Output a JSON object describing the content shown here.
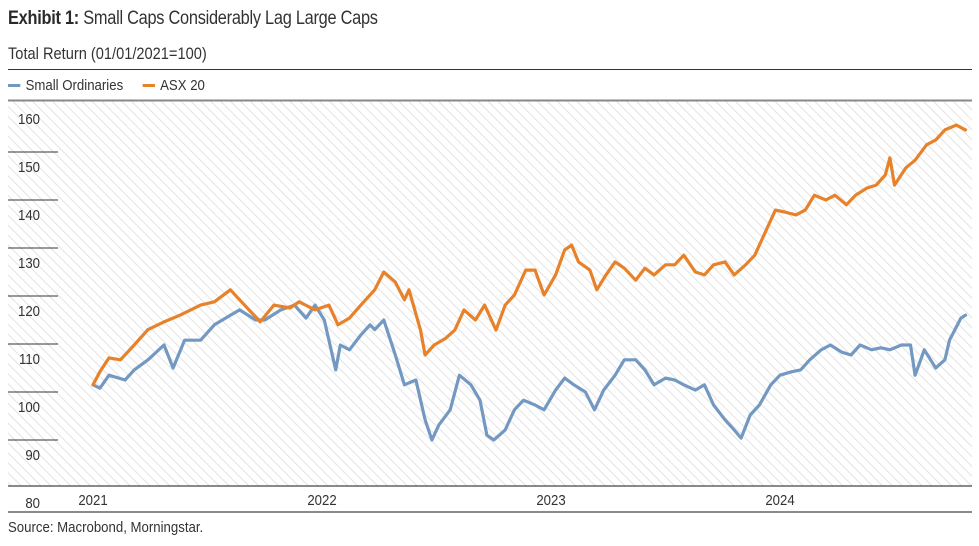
{
  "header": {
    "exhibit_label": "Exhibit 1:",
    "title": "Small Caps Considerably Lag Large Caps",
    "subtitle": "Total Return (01/01/2021=100)"
  },
  "footer": {
    "source": "Source: Macrobond, Morningstar."
  },
  "chart_data": {
    "type": "line",
    "title": "Exhibit 1: Small Caps Considerably Lag Large Caps",
    "subtitle": "Total Return (01/01/2021=100)",
    "xlabel": "",
    "ylabel": "",
    "ylim": [
      80,
      160
    ],
    "yticks": [
      80,
      90,
      100,
      110,
      120,
      130,
      140,
      150,
      160
    ],
    "xlim": [
      2021.0,
      2024.83
    ],
    "xticks": [
      {
        "value": 2021,
        "label": "2021"
      },
      {
        "value": 2022,
        "label": "2022"
      },
      {
        "value": 2023,
        "label": "2023"
      },
      {
        "value": 2024,
        "label": "2024"
      }
    ],
    "grid": "horizontal",
    "legend_position": "top-left",
    "series": [
      {
        "name": "Small Ordinaries",
        "color": "#7399c2",
        "points": [
          [
            2021.0,
            101.5
          ],
          [
            2021.03,
            100.8
          ],
          [
            2021.07,
            103.5
          ],
          [
            2021.14,
            102.5
          ],
          [
            2021.18,
            104.6
          ],
          [
            2021.24,
            106.7
          ],
          [
            2021.31,
            109.8
          ],
          [
            2021.35,
            105.0
          ],
          [
            2021.4,
            110.8
          ],
          [
            2021.47,
            110.8
          ],
          [
            2021.53,
            114.0
          ],
          [
            2021.6,
            116.0
          ],
          [
            2021.64,
            117.1
          ],
          [
            2021.71,
            115.0
          ],
          [
            2021.75,
            115.0
          ],
          [
            2021.82,
            117.1
          ],
          [
            2021.88,
            118.1
          ],
          [
            2021.93,
            115.4
          ],
          [
            2021.97,
            118.1
          ],
          [
            2022.01,
            115.0
          ],
          [
            2022.03,
            110.8
          ],
          [
            2022.06,
            104.6
          ],
          [
            2022.08,
            109.8
          ],
          [
            2022.12,
            108.8
          ],
          [
            2022.17,
            111.9
          ],
          [
            2022.21,
            114.0
          ],
          [
            2022.23,
            113.0
          ],
          [
            2022.27,
            115.0
          ],
          [
            2022.32,
            107.7
          ],
          [
            2022.36,
            101.5
          ],
          [
            2022.41,
            102.5
          ],
          [
            2022.45,
            94.2
          ],
          [
            2022.48,
            90.0
          ],
          [
            2022.51,
            93.1
          ],
          [
            2022.56,
            96.3
          ],
          [
            2022.6,
            103.5
          ],
          [
            2022.65,
            101.5
          ],
          [
            2022.69,
            98.3
          ],
          [
            2022.72,
            91.0
          ],
          [
            2022.75,
            90.0
          ],
          [
            2022.8,
            92.1
          ],
          [
            2022.84,
            96.3
          ],
          [
            2022.88,
            98.3
          ],
          [
            2022.93,
            97.3
          ],
          [
            2022.97,
            96.3
          ],
          [
            2023.02,
            100.4
          ],
          [
            2023.06,
            102.9
          ],
          [
            2023.1,
            101.5
          ],
          [
            2023.15,
            100.0
          ],
          [
            2023.19,
            96.3
          ],
          [
            2023.23,
            100.4
          ],
          [
            2023.28,
            103.5
          ],
          [
            2023.32,
            106.7
          ],
          [
            2023.37,
            106.7
          ],
          [
            2023.41,
            104.6
          ],
          [
            2023.45,
            101.5
          ],
          [
            2023.5,
            102.9
          ],
          [
            2023.54,
            102.5
          ],
          [
            2023.58,
            101.5
          ],
          [
            2023.63,
            100.4
          ],
          [
            2023.67,
            101.5
          ],
          [
            2023.71,
            97.3
          ],
          [
            2023.76,
            94.2
          ],
          [
            2023.8,
            92.1
          ],
          [
            2023.83,
            90.4
          ],
          [
            2023.87,
            95.2
          ],
          [
            2023.91,
            97.3
          ],
          [
            2023.96,
            101.5
          ],
          [
            2024.0,
            103.5
          ],
          [
            2024.05,
            104.2
          ],
          [
            2024.09,
            104.6
          ],
          [
            2024.13,
            106.7
          ],
          [
            2024.18,
            108.8
          ],
          [
            2024.22,
            109.8
          ],
          [
            2024.27,
            108.3
          ],
          [
            2024.31,
            107.7
          ],
          [
            2024.35,
            109.8
          ],
          [
            2024.4,
            108.8
          ],
          [
            2024.44,
            109.2
          ],
          [
            2024.48,
            108.8
          ],
          [
            2024.53,
            109.8
          ],
          [
            2024.57,
            109.8
          ],
          [
            2024.59,
            103.5
          ],
          [
            2024.63,
            108.8
          ],
          [
            2024.68,
            105.0
          ],
          [
            2024.72,
            106.7
          ],
          [
            2024.74,
            110.8
          ],
          [
            2024.79,
            115.4
          ],
          [
            2024.81,
            116.0
          ]
        ]
      },
      {
        "name": "ASX 20",
        "color": "#e8822a",
        "points": [
          [
            2021.0,
            101.5
          ],
          [
            2021.03,
            104.2
          ],
          [
            2021.07,
            107.1
          ],
          [
            2021.12,
            106.7
          ],
          [
            2021.18,
            109.8
          ],
          [
            2021.24,
            113.0
          ],
          [
            2021.31,
            114.6
          ],
          [
            2021.38,
            116.0
          ],
          [
            2021.47,
            118.1
          ],
          [
            2021.53,
            118.8
          ],
          [
            2021.6,
            121.3
          ],
          [
            2021.64,
            119.2
          ],
          [
            2021.73,
            114.6
          ],
          [
            2021.79,
            118.1
          ],
          [
            2021.86,
            117.5
          ],
          [
            2021.9,
            118.8
          ],
          [
            2021.97,
            117.1
          ],
          [
            2022.03,
            118.1
          ],
          [
            2022.07,
            114.0
          ],
          [
            2022.12,
            115.4
          ],
          [
            2022.17,
            118.1
          ],
          [
            2022.23,
            121.3
          ],
          [
            2022.27,
            125.0
          ],
          [
            2022.32,
            122.9
          ],
          [
            2022.36,
            119.2
          ],
          [
            2022.38,
            121.3
          ],
          [
            2022.43,
            112.9
          ],
          [
            2022.45,
            107.7
          ],
          [
            2022.49,
            109.8
          ],
          [
            2022.54,
            111.2
          ],
          [
            2022.58,
            112.9
          ],
          [
            2022.62,
            117.1
          ],
          [
            2022.67,
            115.0
          ],
          [
            2022.71,
            118.1
          ],
          [
            2022.76,
            112.9
          ],
          [
            2022.8,
            118.1
          ],
          [
            2022.84,
            120.2
          ],
          [
            2022.89,
            125.4
          ],
          [
            2022.93,
            125.4
          ],
          [
            2022.97,
            120.2
          ],
          [
            2023.02,
            124.4
          ],
          [
            2023.06,
            129.6
          ],
          [
            2023.09,
            130.6
          ],
          [
            2023.12,
            127.1
          ],
          [
            2023.17,
            125.4
          ],
          [
            2023.2,
            121.3
          ],
          [
            2023.24,
            124.4
          ],
          [
            2023.28,
            127.1
          ],
          [
            2023.32,
            125.8
          ],
          [
            2023.37,
            123.3
          ],
          [
            2023.41,
            125.8
          ],
          [
            2023.45,
            124.4
          ],
          [
            2023.5,
            126.5
          ],
          [
            2023.54,
            126.5
          ],
          [
            2023.58,
            128.5
          ],
          [
            2023.63,
            125.0
          ],
          [
            2023.67,
            124.4
          ],
          [
            2023.71,
            126.5
          ],
          [
            2023.76,
            127.1
          ],
          [
            2023.8,
            124.4
          ],
          [
            2023.85,
            126.5
          ],
          [
            2023.89,
            128.5
          ],
          [
            2023.93,
            132.7
          ],
          [
            2023.98,
            137.9
          ],
          [
            2024.02,
            137.5
          ],
          [
            2024.07,
            136.9
          ],
          [
            2024.11,
            137.9
          ],
          [
            2024.15,
            141.0
          ],
          [
            2024.2,
            140.0
          ],
          [
            2024.24,
            141.0
          ],
          [
            2024.29,
            139.0
          ],
          [
            2024.33,
            141.0
          ],
          [
            2024.38,
            142.5
          ],
          [
            2024.42,
            143.1
          ],
          [
            2024.46,
            145.2
          ],
          [
            2024.48,
            148.8
          ],
          [
            2024.5,
            143.1
          ],
          [
            2024.55,
            146.7
          ],
          [
            2024.59,
            148.3
          ],
          [
            2024.64,
            151.5
          ],
          [
            2024.68,
            152.5
          ],
          [
            2024.72,
            154.6
          ],
          [
            2024.77,
            155.6
          ],
          [
            2024.81,
            154.6
          ]
        ]
      }
    ]
  }
}
